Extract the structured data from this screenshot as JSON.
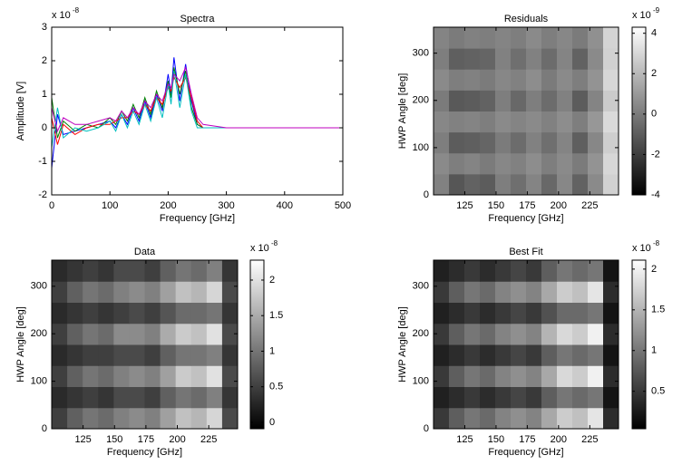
{
  "chart_data": [
    {
      "type": "line",
      "title": "Spectra",
      "xlabel": "Frequency [GHz]",
      "ylabel": "Amplitude [V]",
      "y_exponent": {
        "base": "x 10",
        "power": "-8"
      },
      "xlim": [
        0,
        500
      ],
      "xticks": [
        0,
        100,
        200,
        300,
        400,
        500
      ],
      "ylim": [
        -2,
        3
      ],
      "yticks": [
        -2,
        -1,
        0,
        1,
        2,
        3
      ],
      "x": [
        0,
        10,
        20,
        40,
        60,
        80,
        100,
        110,
        120,
        130,
        140,
        150,
        160,
        170,
        180,
        190,
        200,
        205,
        210,
        220,
        230,
        240,
        250,
        260,
        300,
        400,
        500
      ],
      "series": [
        {
          "color": "#0000ff",
          "values": [
            -1.2,
            0.4,
            -0.2,
            -0.1,
            0,
            0.1,
            0.2,
            0,
            0.4,
            0.1,
            0.6,
            0.2,
            0.8,
            0.3,
            1.0,
            0.5,
            1.6,
            1.0,
            2.1,
            0.8,
            1.9,
            0.8,
            0.1,
            0,
            0,
            0,
            0
          ]
        },
        {
          "color": "#008000",
          "values": [
            0.9,
            -0.3,
            0.2,
            -0.1,
            0.1,
            0,
            0.3,
            0.1,
            0.5,
            0.2,
            0.7,
            0.3,
            0.9,
            0.4,
            1.1,
            0.6,
            1.4,
            0.9,
            1.8,
            1.0,
            1.7,
            0.6,
            0.1,
            0,
            0,
            0,
            0
          ]
        },
        {
          "color": "#ff0000",
          "values": [
            0.3,
            -0.5,
            0.1,
            -0.2,
            0,
            0.1,
            0.1,
            0.2,
            0.3,
            0.3,
            0.5,
            0.4,
            0.7,
            0.5,
            0.9,
            0.7,
            1.2,
            1.1,
            1.5,
            1.2,
            1.5,
            0.9,
            0.2,
            0,
            0,
            0,
            0
          ]
        },
        {
          "color": "#00bfbf",
          "values": [
            -0.6,
            0.6,
            -0.3,
            0,
            -0.1,
            0,
            0.2,
            -0.1,
            0.4,
            0,
            0.5,
            0.1,
            0.7,
            0.2,
            0.9,
            0.3,
            1.3,
            0.7,
            1.7,
            0.6,
            1.6,
            0.5,
            0,
            0,
            0,
            0,
            0
          ]
        },
        {
          "color": "#bf00bf",
          "values": [
            0.6,
            -0.1,
            0.3,
            0.1,
            0.1,
            0.2,
            0.3,
            0.2,
            0.5,
            0.3,
            0.6,
            0.4,
            0.8,
            0.6,
            1.0,
            0.8,
            1.3,
            1.2,
            1.6,
            1.4,
            1.8,
            1.0,
            0.3,
            0.1,
            0,
            0,
            0
          ]
        }
      ]
    },
    {
      "type": "heatmap",
      "title": "Residuals",
      "xlabel": "Frequency [GHz]",
      "ylabel": "HWP Angle [deg]",
      "xlim": [
        100,
        248
      ],
      "xticks": [
        125,
        150,
        175,
        200,
        225
      ],
      "ylim": [
        0,
        355
      ],
      "yticks": [
        0,
        100,
        200,
        300
      ],
      "colormap": "gray",
      "clim": [
        -4,
        4.3
      ],
      "cticks": [
        -4,
        -2,
        0,
        2,
        4
      ],
      "c_exponent": {
        "base": "x 10",
        "power": "-9"
      },
      "z": [
        [
          0.2,
          -1.2,
          -0.8,
          -1.0,
          0.1,
          -0.4,
          0.3,
          -0.6,
          0.4,
          -0.8,
          0.5,
          2.8
        ],
        [
          0.5,
          0.1,
          0.3,
          0.0,
          0.4,
          0.2,
          0.6,
          0.1,
          0.5,
          0.0,
          0.8,
          3.0
        ],
        [
          0.1,
          -1.0,
          -0.9,
          -0.7,
          0.0,
          -0.5,
          0.2,
          -0.4,
          0.3,
          -0.9,
          0.4,
          2.7
        ],
        [
          0.4,
          0.2,
          0.3,
          0.1,
          0.5,
          0.3,
          0.5,
          0.2,
          0.6,
          0.1,
          0.9,
          3.1
        ],
        [
          0.0,
          -1.1,
          -1.0,
          -0.8,
          0.1,
          -0.6,
          0.1,
          -0.5,
          0.2,
          -1.0,
          0.3,
          2.6
        ],
        [
          0.5,
          0.1,
          0.2,
          0.0,
          0.4,
          0.2,
          0.6,
          0.0,
          0.5,
          0.1,
          0.8,
          3.0
        ],
        [
          0.1,
          -0.9,
          -0.8,
          -0.7,
          0.2,
          -0.4,
          0.2,
          -0.5,
          0.3,
          -0.8,
          0.5,
          2.8
        ],
        [
          0.3,
          0.0,
          0.2,
          0.1,
          0.3,
          0.1,
          0.5,
          0.1,
          0.4,
          0.0,
          0.7,
          2.9
        ]
      ]
    },
    {
      "type": "heatmap",
      "title": "Data",
      "xlabel": "Frequency [GHz]",
      "ylabel": "HWP Angle [deg]",
      "xlim": [
        100,
        248
      ],
      "xticks": [
        125,
        150,
        175,
        200,
        225
      ],
      "ylim": [
        0,
        355
      ],
      "yticks": [
        0,
        100,
        200,
        300
      ],
      "colormap": "gray",
      "clim": [
        -0.09,
        2.28
      ],
      "cticks": [
        0,
        0.5,
        1,
        1.5,
        2
      ],
      "c_exponent": {
        "base": "x 10",
        "power": "-8"
      },
      "z": [
        [
          0.5,
          0.8,
          1.0,
          0.9,
          1.1,
          1.2,
          1.1,
          1.4,
          1.7,
          1.6,
          1.9,
          0.6
        ],
        [
          0.3,
          0.4,
          0.5,
          0.4,
          0.6,
          0.6,
          0.5,
          0.8,
          1.0,
          0.9,
          1.1,
          0.4
        ],
        [
          0.5,
          0.8,
          1.0,
          0.9,
          1.1,
          1.2,
          1.1,
          1.4,
          1.8,
          1.7,
          2.0,
          0.6
        ],
        [
          0.3,
          0.4,
          0.5,
          0.5,
          0.6,
          0.6,
          0.5,
          0.8,
          1.0,
          1.0,
          1.1,
          0.4
        ],
        [
          0.5,
          0.8,
          1.0,
          0.9,
          1.2,
          1.2,
          1.1,
          1.5,
          1.8,
          1.7,
          2.0,
          0.6
        ],
        [
          0.3,
          0.4,
          0.5,
          0.4,
          0.5,
          0.6,
          0.5,
          0.7,
          0.9,
          0.9,
          1.0,
          0.4
        ],
        [
          0.5,
          0.8,
          1.0,
          0.9,
          1.1,
          1.2,
          1.1,
          1.4,
          1.7,
          1.6,
          1.9,
          0.6
        ],
        [
          0.3,
          0.4,
          0.5,
          0.4,
          0.6,
          0.6,
          0.5,
          0.8,
          1.0,
          0.9,
          1.1,
          0.4
        ]
      ]
    },
    {
      "type": "heatmap",
      "title": "Best Fit",
      "xlabel": "Frequency [GHz]",
      "ylabel": "HWP Angle [deg]",
      "xlim": [
        100,
        248
      ],
      "xticks": [
        125,
        150,
        175,
        200,
        225
      ],
      "ylim": [
        0,
        355
      ],
      "yticks": [
        0,
        100,
        200,
        300
      ],
      "colormap": "gray",
      "clim": [
        0.04,
        2.11
      ],
      "cticks": [
        0.5,
        1,
        1.5,
        2
      ],
      "c_exponent": {
        "base": "x 10",
        "power": "-8"
      },
      "z": [
        [
          0.5,
          0.8,
          1.0,
          0.9,
          1.1,
          1.2,
          1.1,
          1.4,
          1.7,
          1.6,
          1.9,
          0.4
        ],
        [
          0.3,
          0.4,
          0.5,
          0.4,
          0.5,
          0.6,
          0.5,
          0.8,
          1.0,
          0.9,
          1.0,
          0.2
        ],
        [
          0.5,
          0.8,
          1.0,
          0.9,
          1.1,
          1.2,
          1.1,
          1.4,
          1.8,
          1.7,
          2.0,
          0.4
        ],
        [
          0.3,
          0.4,
          0.5,
          0.4,
          0.5,
          0.6,
          0.5,
          0.8,
          1.0,
          0.9,
          1.0,
          0.2
        ],
        [
          0.5,
          0.8,
          1.0,
          0.9,
          1.1,
          1.2,
          1.1,
          1.5,
          1.8,
          1.7,
          2.0,
          0.4
        ],
        [
          0.3,
          0.4,
          0.5,
          0.4,
          0.5,
          0.6,
          0.5,
          0.7,
          0.9,
          0.9,
          1.0,
          0.2
        ],
        [
          0.5,
          0.8,
          1.0,
          0.9,
          1.1,
          1.2,
          1.1,
          1.4,
          1.7,
          1.6,
          1.9,
          0.4
        ],
        [
          0.3,
          0.4,
          0.5,
          0.4,
          0.5,
          0.6,
          0.5,
          0.8,
          1.0,
          0.9,
          1.0,
          0.2
        ]
      ]
    }
  ]
}
